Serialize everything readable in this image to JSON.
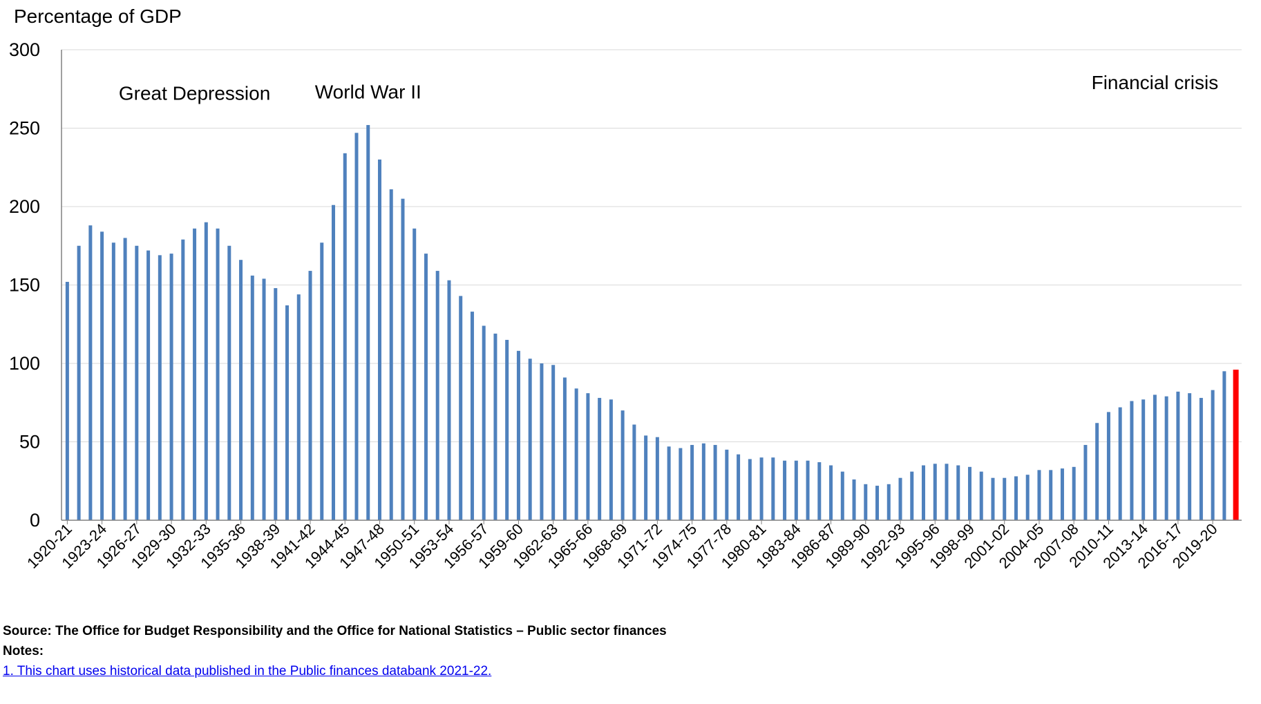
{
  "chart_data": {
    "type": "bar",
    "ylabel": "Percentage of GDP",
    "ylim": [
      0,
      300
    ],
    "yticks": [
      0,
      50,
      100,
      150,
      200,
      250,
      300
    ],
    "grid": true,
    "legend": "none",
    "colors": {
      "bar": "#4f81bd",
      "highlight": "#ff0000",
      "grid": "#d9d9d9",
      "axis": "#808080"
    },
    "categories": [
      "1920-21",
      "1921-22",
      "1922-23",
      "1923-24",
      "1924-25",
      "1925-26",
      "1926-27",
      "1927-28",
      "1928-29",
      "1929-30",
      "1930-31",
      "1931-32",
      "1932-33",
      "1933-34",
      "1934-35",
      "1935-36",
      "1936-37",
      "1937-38",
      "1938-39",
      "1939-40",
      "1940-41",
      "1941-42",
      "1942-43",
      "1943-44",
      "1944-45",
      "1945-46",
      "1946-47",
      "1947-48",
      "1948-49",
      "1949-50",
      "1950-51",
      "1951-52",
      "1952-53",
      "1953-54",
      "1954-55",
      "1955-56",
      "1956-57",
      "1957-58",
      "1958-59",
      "1959-60",
      "1960-61",
      "1961-62",
      "1962-63",
      "1963-64",
      "1964-65",
      "1965-66",
      "1966-67",
      "1967-68",
      "1968-69",
      "1969-70",
      "1970-71",
      "1971-72",
      "1972-73",
      "1973-74",
      "1974-75",
      "1975-76",
      "1976-77",
      "1977-78",
      "1978-79",
      "1979-80",
      "1980-81",
      "1981-82",
      "1982-83",
      "1983-84",
      "1984-85",
      "1985-86",
      "1986-87",
      "1987-88",
      "1988-89",
      "1989-90",
      "1990-91",
      "1991-92",
      "1992-93",
      "1993-94",
      "1994-95",
      "1995-96",
      "1996-97",
      "1997-98",
      "1998-99",
      "1999-00",
      "2000-01",
      "2001-02",
      "2002-03",
      "2003-04",
      "2004-05",
      "2005-06",
      "2006-07",
      "2007-08",
      "2008-09",
      "2009-10",
      "2010-11",
      "2011-12",
      "2012-13",
      "2013-14",
      "2014-15",
      "2015-16",
      "2016-17",
      "2017-18",
      "2018-19",
      "2019-20",
      "2020-21",
      "2021-22"
    ],
    "values": [
      152,
      175,
      188,
      184,
      177,
      180,
      175,
      172,
      169,
      170,
      179,
      186,
      190,
      186,
      175,
      166,
      156,
      154,
      148,
      137,
      144,
      159,
      177,
      201,
      234,
      247,
      252,
      230,
      211,
      205,
      186,
      170,
      159,
      153,
      143,
      133,
      124,
      119,
      115,
      108,
      103,
      100,
      99,
      91,
      84,
      81,
      78,
      77,
      70,
      61,
      54,
      53,
      47,
      46,
      48,
      49,
      48,
      45,
      42,
      39,
      40,
      40,
      38,
      38,
      38,
      37,
      35,
      31,
      26,
      23,
      22,
      23,
      27,
      31,
      35,
      36,
      36,
      35,
      34,
      31,
      27,
      27,
      28,
      29,
      32,
      32,
      33,
      34,
      48,
      62,
      69,
      72,
      76,
      77,
      80,
      79,
      82,
      81,
      78,
      83,
      95,
      96
    ],
    "highlight_index": 101,
    "xtick_every": 3,
    "annotations": [
      {
        "text": "Great Depression",
        "x": "1931-32",
        "y": 268
      },
      {
        "text": "World War II",
        "x": "1946-47",
        "y": 269
      },
      {
        "text": "Financial crisis",
        "x": "2014-15",
        "y": 275
      }
    ]
  },
  "footer": {
    "source": "Source: The Office for Budget Responsibility and the Office for National Statistics – Public sector finances",
    "notes_heading": "Notes:",
    "note_1": "1. This chart uses historical data published in the Public finances databank 2021-22. "
  }
}
